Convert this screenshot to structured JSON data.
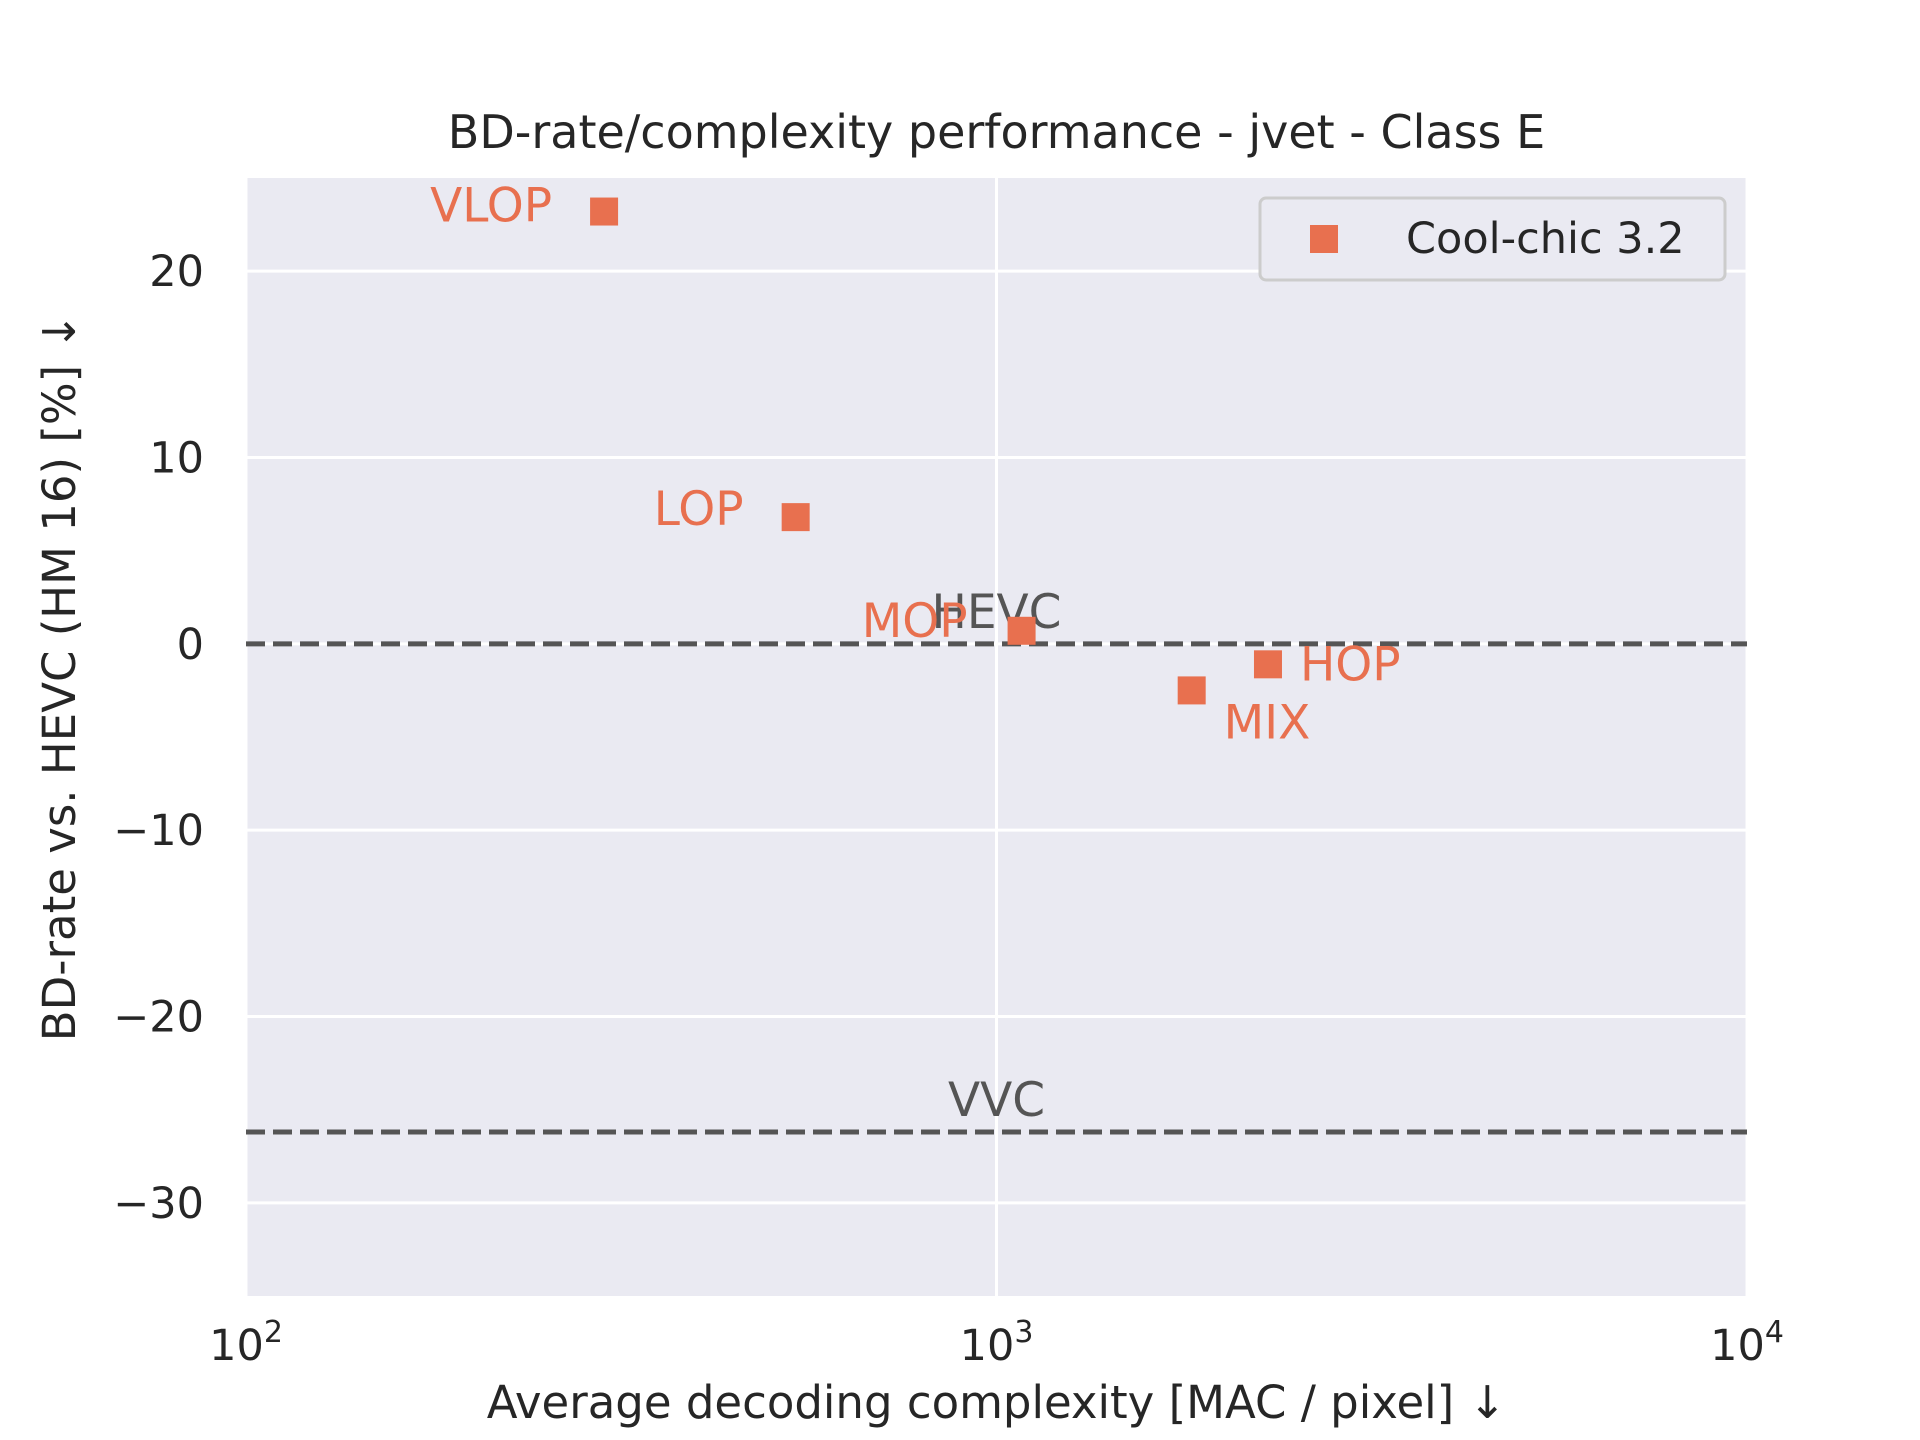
{
  "chart_data": {
    "type": "scatter",
    "title": "BD-rate/complexity performance - jvet - Class E",
    "xlabel": "Average decoding complexity [MAC / pixel] ↓",
    "ylabel": "BD-rate vs. HEVC (HM 16) [%] ↓",
    "x_scale": "log",
    "xlim": [
      100,
      10000
    ],
    "ylim": [
      -35,
      25
    ],
    "x_ticks": [
      {
        "value": 100,
        "base": "10",
        "exp": "2"
      },
      {
        "value": 1000,
        "base": "10",
        "exp": "3"
      },
      {
        "value": 10000,
        "base": "10",
        "exp": "4"
      }
    ],
    "y_ticks": [
      {
        "value": 20,
        "label": "20"
      },
      {
        "value": 10,
        "label": "10"
      },
      {
        "value": 0,
        "label": "0"
      },
      {
        "value": -10,
        "label": "−10"
      },
      {
        "value": -20,
        "label": "−20"
      },
      {
        "value": -30,
        "label": "−30"
      }
    ],
    "grid": true,
    "legend_position": "top-right",
    "series": [
      {
        "name": "Cool-chic 3.2",
        "color": "#E8704F",
        "marker": "square",
        "points": [
          {
            "label": "VLOP",
            "x": 300,
            "y": 23.2,
            "label_side": "left"
          },
          {
            "label": "LOP",
            "x": 540,
            "y": 6.8,
            "label_side": "left"
          },
          {
            "label": "MOP",
            "x": 1080,
            "y": 0.7,
            "label_side": "left"
          },
          {
            "label": "MIX",
            "x": 1820,
            "y": -2.5,
            "label_side": "below-right"
          },
          {
            "label": "HOP",
            "x": 2300,
            "y": -1.1,
            "label_side": "right"
          }
        ]
      }
    ],
    "reference_lines": [
      {
        "label": "HEVC",
        "y": 0,
        "color": "#555555",
        "style": "dashed"
      },
      {
        "label": "VVC",
        "y": -26.2,
        "color": "#555555",
        "style": "dashed"
      }
    ]
  }
}
